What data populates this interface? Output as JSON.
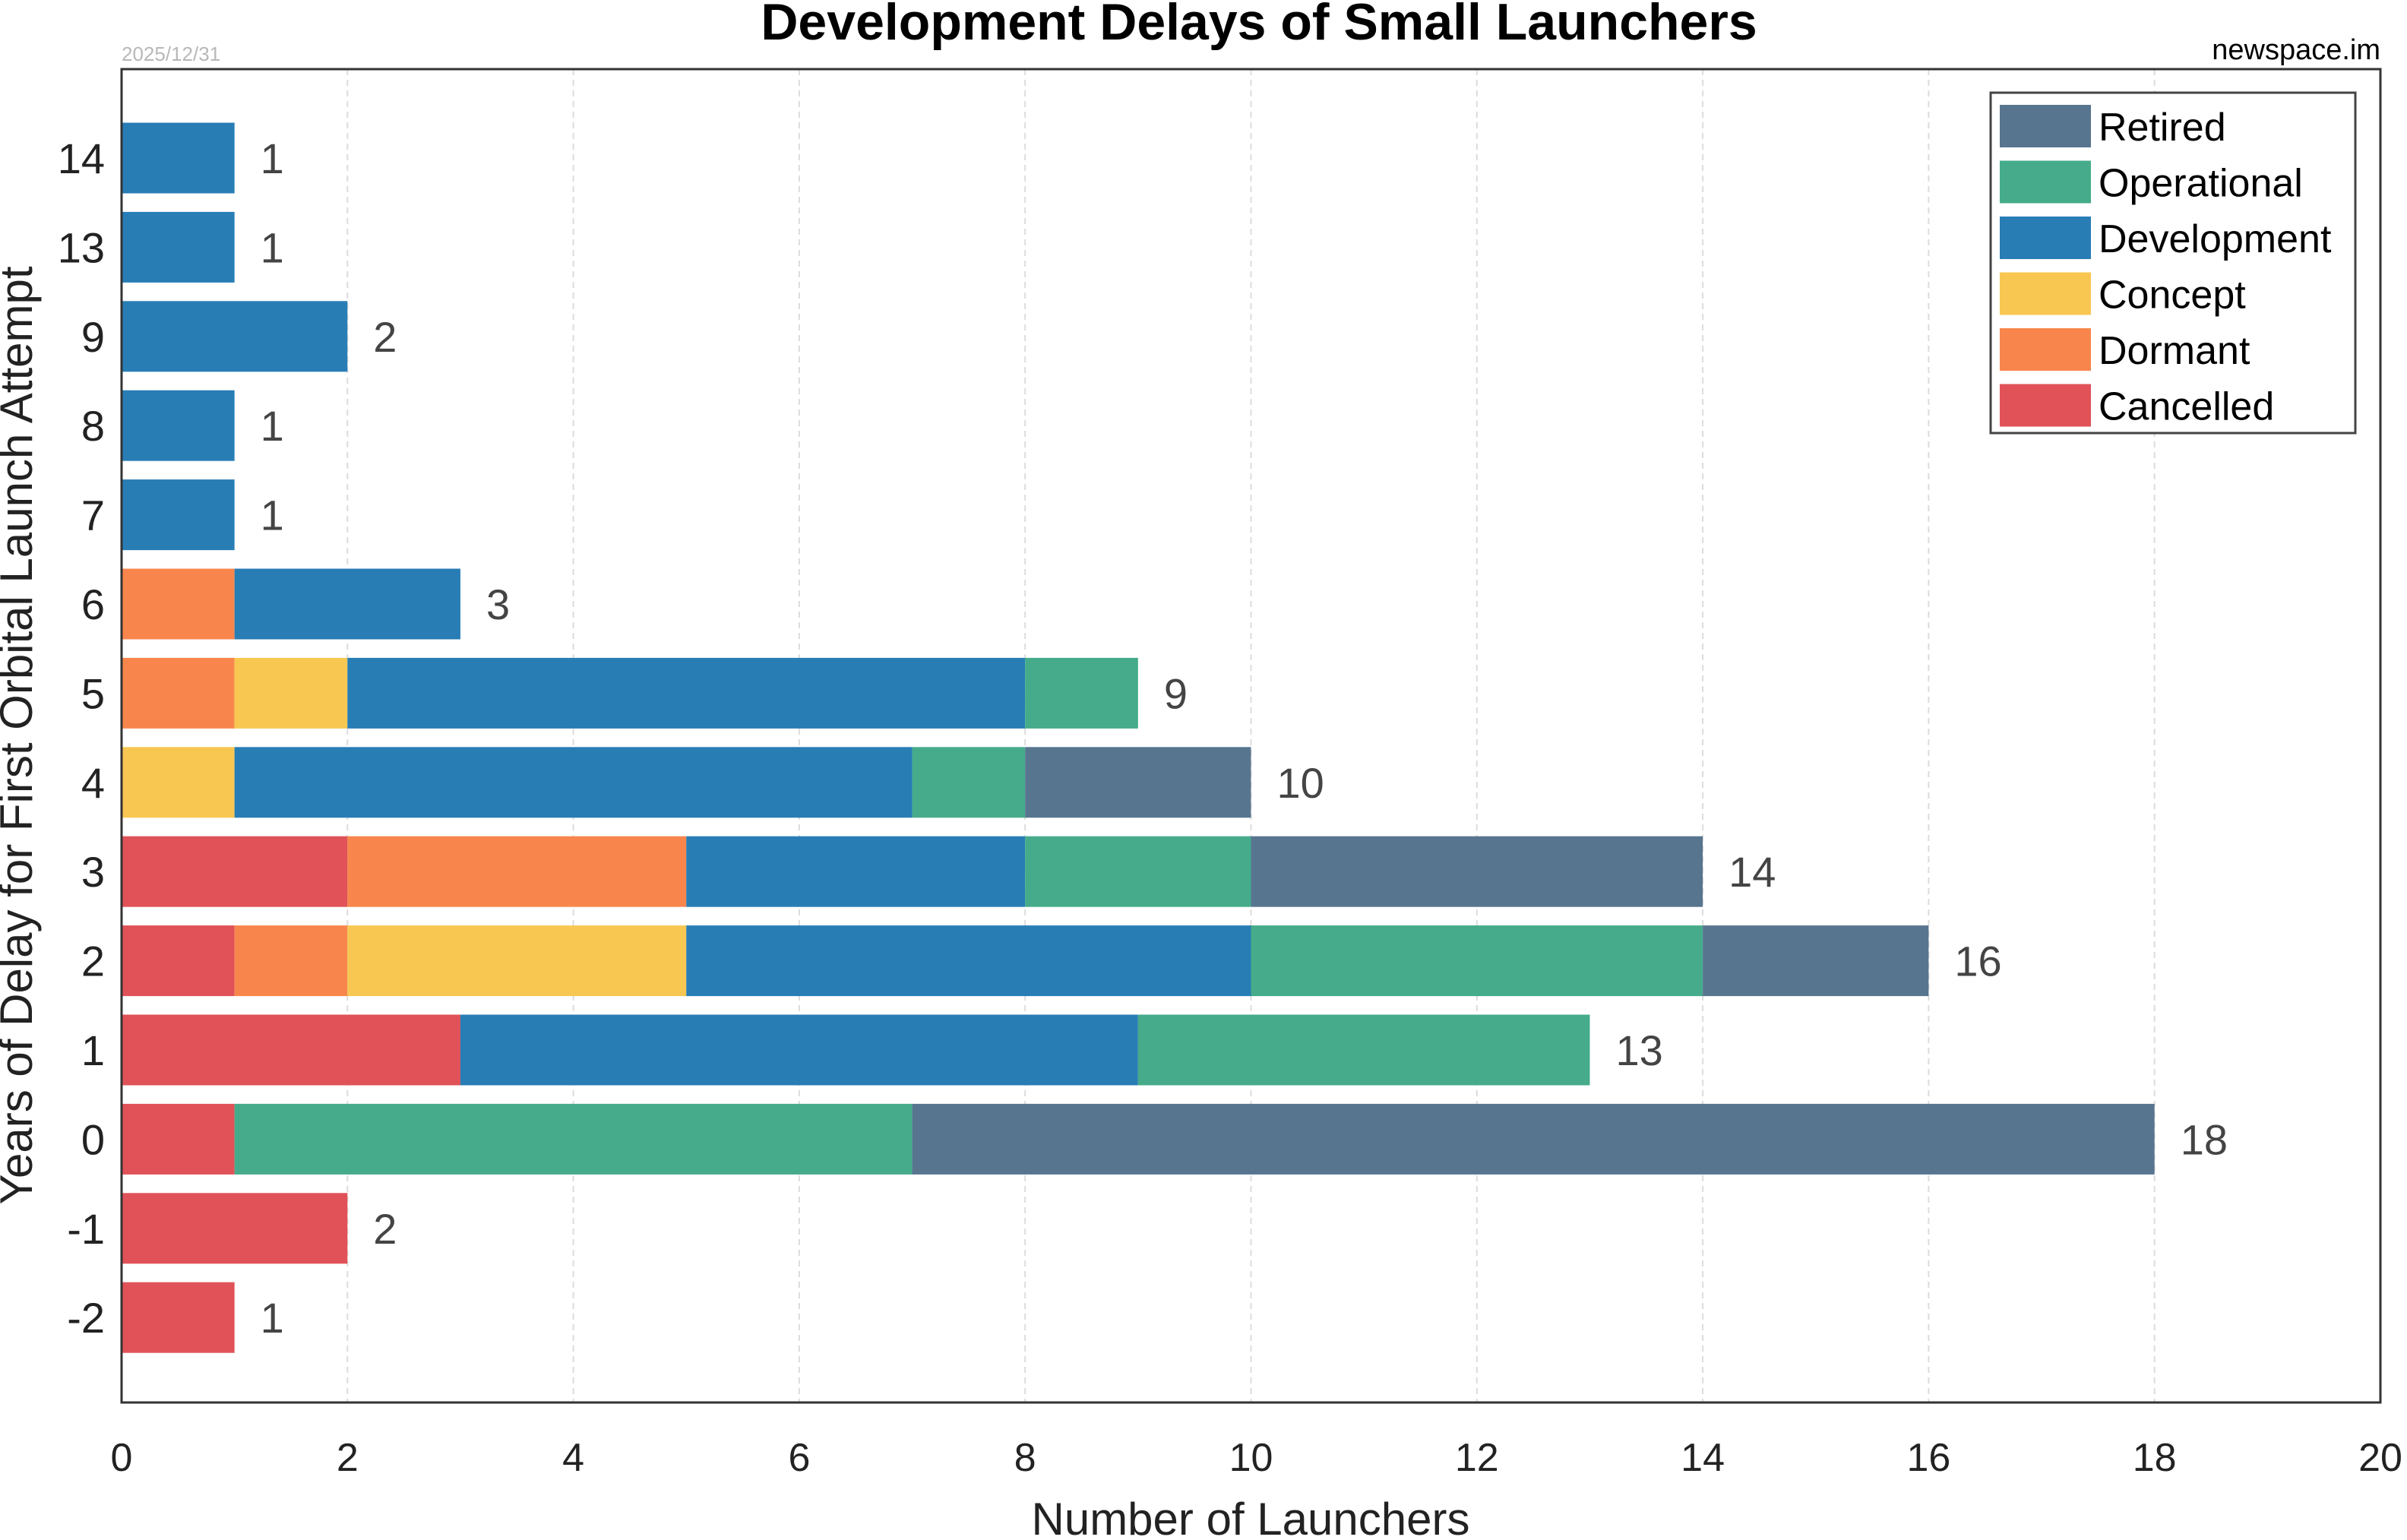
{
  "chart_data": {
    "type": "bar",
    "orientation": "horizontal",
    "stacked": true,
    "title": "Development Delays of Small Launchers",
    "date": "2025/12/31",
    "credit": "newspace.im",
    "xlabel": "Number of Launchers",
    "ylabel": "Years of Delay for First Orbital Launch Attempt",
    "xlim": [
      0,
      20
    ],
    "xticks": [
      0,
      2,
      4,
      6,
      8,
      10,
      12,
      14,
      16,
      18,
      20
    ],
    "grid": "vertical-dashed",
    "legend_position": "top-right",
    "categories": [
      "14",
      "13",
      "9",
      "8",
      "7",
      "6",
      "5",
      "4",
      "3",
      "2",
      "1",
      "0",
      "-1",
      "-2"
    ],
    "stack_order": [
      "Cancelled",
      "Dormant",
      "Concept",
      "Development",
      "Operational",
      "Retired"
    ],
    "legend_order": [
      "Retired",
      "Operational",
      "Development",
      "Concept",
      "Dormant",
      "Cancelled"
    ],
    "series": [
      {
        "name": "Cancelled",
        "color": "#e05258",
        "values": [
          0,
          0,
          0,
          0,
          0,
          0,
          0,
          0,
          2,
          1,
          3,
          1,
          2,
          1
        ]
      },
      {
        "name": "Dormant",
        "color": "#f8864c",
        "values": [
          0,
          0,
          0,
          0,
          0,
          1,
          1,
          0,
          3,
          1,
          0,
          0,
          0,
          0
        ]
      },
      {
        "name": "Concept",
        "color": "#f8c752",
        "values": [
          0,
          0,
          0,
          0,
          0,
          0,
          1,
          1,
          0,
          3,
          0,
          0,
          0,
          0
        ]
      },
      {
        "name": "Development",
        "color": "#287db5",
        "values": [
          1,
          1,
          2,
          1,
          1,
          2,
          6,
          6,
          3,
          5,
          6,
          0,
          0,
          0
        ]
      },
      {
        "name": "Operational",
        "color": "#45ab8b",
        "values": [
          0,
          0,
          0,
          0,
          0,
          0,
          1,
          1,
          2,
          4,
          4,
          6,
          0,
          0
        ]
      },
      {
        "name": "Retired",
        "color": "#58758f",
        "values": [
          0,
          0,
          0,
          0,
          0,
          0,
          0,
          2,
          4,
          2,
          0,
          11,
          0,
          0
        ]
      }
    ],
    "totals": [
      1,
      1,
      2,
      1,
      1,
      3,
      9,
      10,
      14,
      16,
      13,
      18,
      2,
      1
    ]
  }
}
